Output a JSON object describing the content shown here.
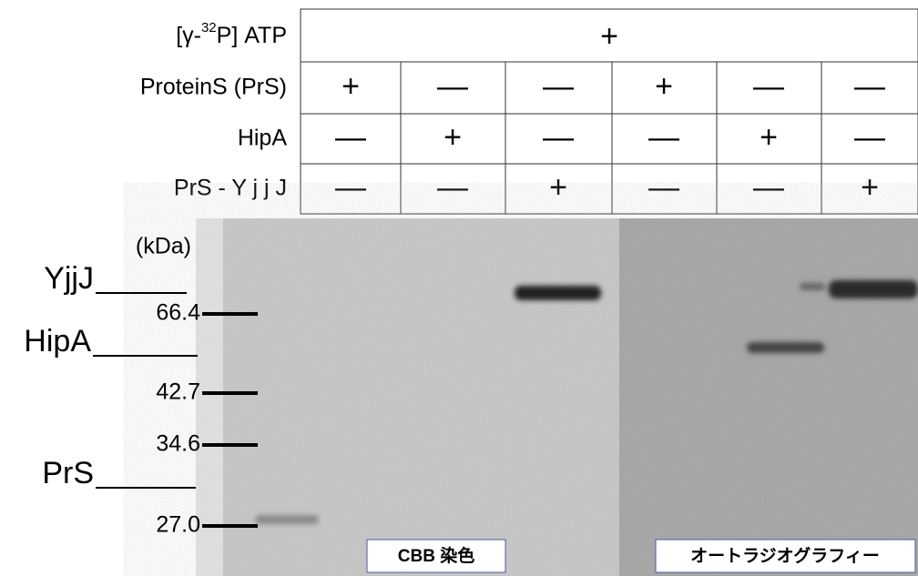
{
  "table": {
    "header": {
      "label": {
        "prefix": "[γ-",
        "superscript": "32",
        "suffix": "P] ATP"
      },
      "value": "+"
    },
    "rows": [
      {
        "label": "ProteinS (PrS)",
        "cells": [
          "+",
          "—",
          "—",
          "+",
          "—",
          "—"
        ]
      },
      {
        "label": "HipA",
        "cells": [
          "—",
          "+",
          "—",
          "—",
          "+",
          "—"
        ]
      },
      {
        "label": "PrS - Y j j J",
        "cells": [
          "—",
          "—",
          "+",
          "—",
          "—",
          "+"
        ]
      }
    ]
  },
  "gel": {
    "unit": "(kDa)",
    "markers": [
      "66.4",
      "42.7",
      "34.6",
      "27.0"
    ],
    "proteins": [
      "YjjJ",
      "HipA",
      "PrS"
    ],
    "panels": [
      "CBB 染色",
      "オートラジオグラフィー"
    ]
  }
}
